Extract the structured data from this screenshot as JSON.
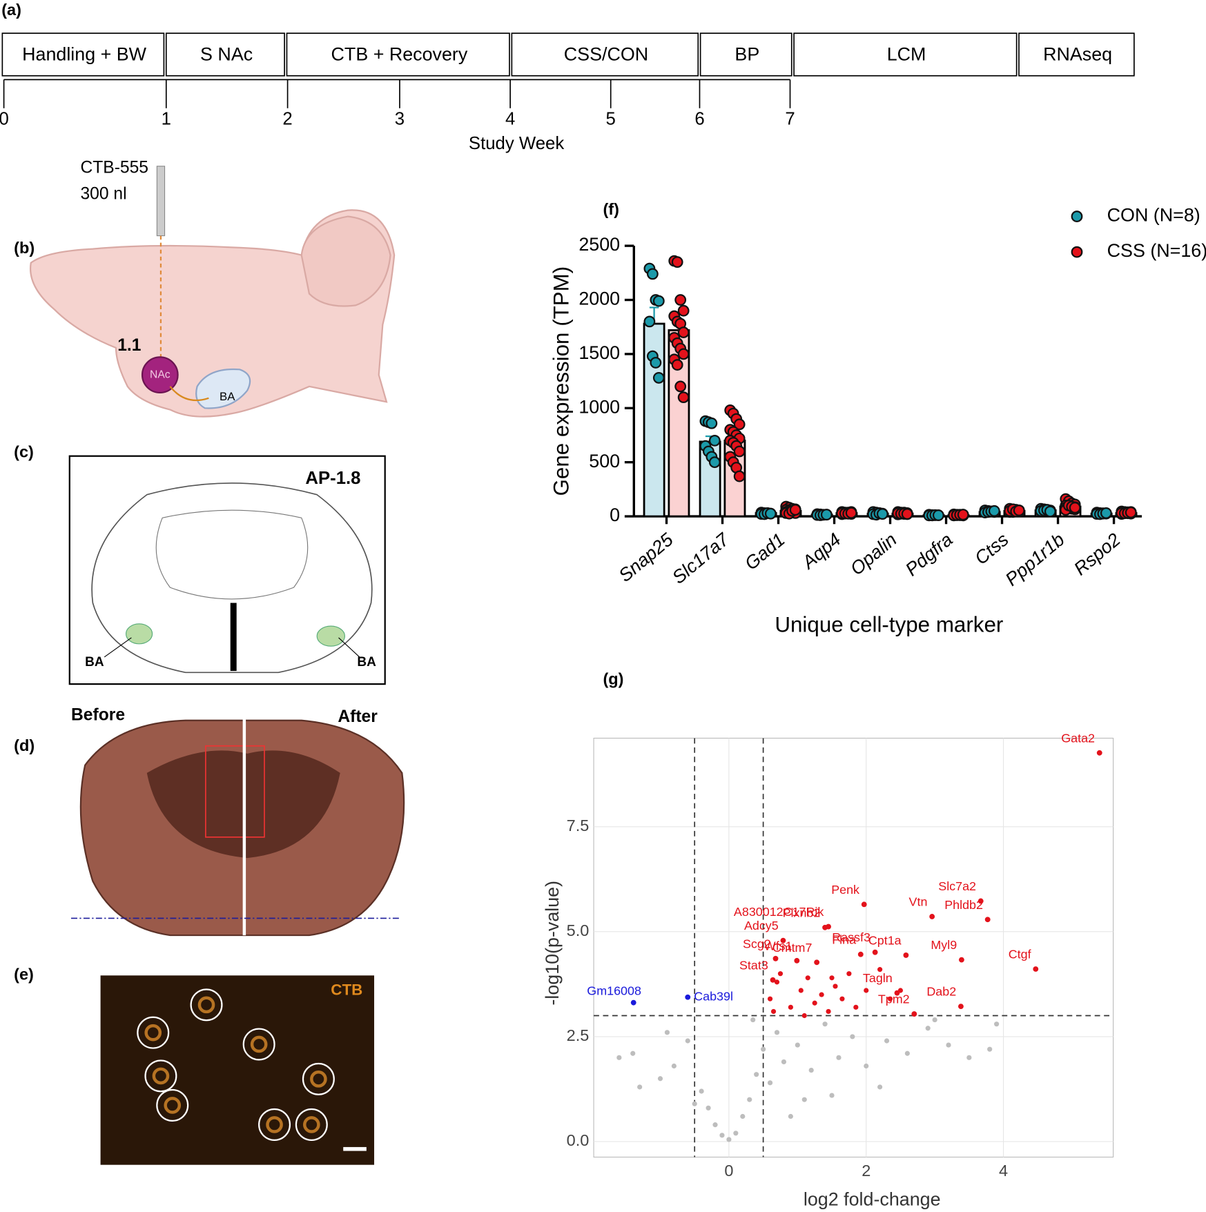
{
  "panel_labels": [
    "(a)",
    "(b)",
    "(c)",
    "(d)",
    "(e)",
    "(f)",
    "(g)"
  ],
  "timeline": {
    "stages": [
      "Handling + BW",
      "S NAc",
      "CTB + Recovery",
      "CSS/CON",
      "BP",
      "LCM",
      "RNAseq"
    ],
    "ticks": [
      "0",
      "1",
      "2",
      "3",
      "4",
      "5",
      "6",
      "7"
    ],
    "axis_label": "Study Week"
  },
  "injection": {
    "tracer": "CTB-555",
    "volume": "300 nl",
    "coordinate": "1.1",
    "source": "NAc",
    "target": "BA"
  },
  "atlas": {
    "section": "AP-1.8",
    "left_label": "BA",
    "right_label": "BA"
  },
  "slice": {
    "left_label": "Before",
    "right_label": "After"
  },
  "fluorescence": {
    "label": "CTB"
  },
  "chart_data": [
    {
      "type": "bar",
      "x_label": "Unique cell-type marker",
      "y_label": "Gene expression (TPM)",
      "categories": [
        "Snap25",
        "Slc17a7",
        "Gad1",
        "Aqp4",
        "Opalin",
        "Pdgfra",
        "Ctss",
        "Ppp1r1b",
        "Rspo2"
      ],
      "ylim": [
        0,
        2500
      ],
      "yticks": [
        0,
        500,
        1000,
        1500,
        2000,
        2500
      ],
      "legend": "top-right",
      "series": [
        {
          "name": "CON (N=8)",
          "color": "#1b9aaa",
          "bar_color": "#cbe7ee",
          "values": [
            1780,
            690,
            30,
            15,
            25,
            10,
            40,
            55,
            25
          ],
          "errors": [
            150,
            50,
            3,
            2,
            3,
            1,
            3,
            3,
            2
          ],
          "points": [
            [
              2290,
              2240,
              2000,
              1990,
              1800,
              1480,
              1420,
              1280
            ],
            [
              880,
              870,
              860,
              700,
              650,
              600,
              550,
              500
            ],
            [
              35,
              30,
              28,
              25,
              22,
              20,
              30,
              25
            ],
            [
              20,
              18,
              15,
              15,
              12,
              10,
              14,
              16
            ],
            [
              40,
              35,
              30,
              25,
              20,
              15,
              28,
              22
            ],
            [
              15,
              12,
              10,
              10,
              8,
              8,
              12,
              10
            ],
            [
              55,
              50,
              45,
              40,
              35,
              40,
              45,
              50
            ],
            [
              70,
              65,
              60,
              55,
              50,
              55,
              60,
              45
            ],
            [
              35,
              30,
              28,
              25,
              22,
              20,
              25,
              30
            ]
          ]
        },
        {
          "name": "CSS (N=16)",
          "color": "#e3121b",
          "bar_color": "#fbd2d2",
          "values": [
            1720,
            700,
            50,
            30,
            25,
            10,
            50,
            90,
            30
          ],
          "errors": [
            80,
            40,
            5,
            2,
            2,
            1,
            3,
            7,
            2
          ],
          "points": [
            [
              2360,
              2350,
              2000,
              1900,
              1850,
              1800,
              1780,
              1700,
              1650,
              1600,
              1550,
              1500,
              1450,
              1400,
              1200,
              1100
            ],
            [
              980,
              950,
              900,
              850,
              800,
              780,
              750,
              720,
              700,
              680,
              650,
              600,
              550,
              500,
              450,
              370
            ],
            [
              90,
              80,
              70,
              65,
              60,
              55,
              50,
              45,
              40,
              40,
              35,
              30,
              30,
              25,
              50,
              60
            ],
            [
              40,
              35,
              30,
              30,
              28,
              25,
              25,
              22,
              20,
              30,
              35,
              40,
              28,
              26,
              24,
              32
            ],
            [
              40,
              35,
              32,
              30,
              28,
              25,
              22,
              20,
              18,
              30,
              35,
              25,
              28,
              24,
              26,
              22
            ],
            [
              18,
              15,
              14,
              12,
              12,
              10,
              10,
              8,
              8,
              14,
              12,
              10,
              10,
              12,
              15,
              16
            ],
            [
              70,
              65,
              60,
              55,
              50,
              50,
              45,
              45,
              40,
              40,
              60,
              55,
              50,
              65,
              45,
              55
            ],
            [
              160,
              140,
              120,
              110,
              100,
              95,
              90,
              85,
              80,
              75,
              70,
              65,
              60,
              100,
              90,
              80
            ],
            [
              45,
              40,
              38,
              35,
              32,
              30,
              28,
              25,
              22,
              30,
              35,
              40,
              30,
              28,
              32,
              36
            ]
          ]
        }
      ]
    },
    {
      "type": "scatter",
      "x_label": "log2 fold-change",
      "y_label": "-log10(p-value)",
      "xlim": [
        -1.97,
        5.6
      ],
      "ylim": [
        -0.37,
        9.61
      ],
      "xticks": [
        0,
        2,
        4
      ],
      "yticks": [
        {
          "value": 0,
          "label": "0.0"
        },
        {
          "value": 2.5,
          "label": "2.5"
        },
        {
          "value": 5,
          "label": "5.0"
        },
        {
          "value": 7.5,
          "label": "7.5"
        }
      ],
      "grid": true,
      "thresholds": {
        "x": [
          -0.5,
          0.5
        ],
        "y": 3
      },
      "series": [
        {
          "color": "#bdbdbd",
          "x": [
            -1.6,
            -1.3,
            -1.0,
            -0.8,
            -0.6,
            -0.4,
            -0.3,
            -0.2,
            -0.1,
            0,
            0.1,
            0.2,
            0.3,
            0.4,
            0.5,
            0.6,
            0.7,
            0.8,
            1.0,
            1.2,
            1.4,
            1.6,
            1.8,
            2.0,
            2.3,
            2.6,
            2.9,
            3.2,
            3.5,
            3.8,
            3.9,
            3.0,
            1.1,
            0.9,
            -0.5,
            -1.4,
            -0.9,
            2.2,
            1.5,
            0.35
          ],
          "y": [
            2.0,
            1.3,
            1.5,
            1.8,
            2.4,
            1.2,
            0.8,
            0.4,
            0.15,
            0.05,
            0.2,
            0.6,
            1.0,
            1.6,
            2.2,
            1.4,
            2.6,
            1.9,
            2.3,
            1.7,
            2.8,
            2.0,
            2.5,
            1.8,
            2.4,
            2.1,
            2.7,
            2.3,
            2.0,
            2.2,
            2.8,
            2.9,
            1.0,
            0.6,
            0.9,
            2.1,
            2.6,
            1.3,
            1.1,
            2.9
          ]
        },
        {
          "color": "#e3121b",
          "x": [
            0.7,
            0.75,
            0.6,
            0.65,
            0.9,
            1.05,
            1.15,
            1.25,
            1.35,
            1.45,
            1.55,
            1.65,
            1.75,
            1.85,
            2.0,
            2.2,
            2.35,
            2.5,
            1.5,
            1.1
          ],
          "y": [
            3.8,
            4.0,
            3.4,
            3.1,
            3.2,
            3.6,
            3.9,
            3.3,
            3.5,
            3.1,
            3.7,
            3.4,
            4.0,
            3.2,
            3.6,
            4.1,
            3.4,
            3.6,
            3.9,
            3.0
          ]
        },
        {
          "color": "#e3121b",
          "labels": [
            "Gata2",
            "Slc7a2",
            "Phldb2",
            "Vtn",
            "Penk",
            "Plxnb2",
            "A830012C17Rik",
            "Adcy5",
            "Wfs1",
            "Flna",
            "Rassf3",
            "Cpt1a",
            "Myl9",
            "Ctgf",
            "Scg2",
            "Stat3",
            "Cmtm7",
            "Tagln",
            "Tpm2",
            "Dab2"
          ],
          "x": [
            5.4,
            3.67,
            3.77,
            2.96,
            1.97,
            1.4,
            1.45,
            0.79,
            0.99,
            1.92,
            2.13,
            2.58,
            3.39,
            4.47,
            0.68,
            0.64,
            1.28,
            2.45,
            2.7,
            3.38
          ],
          "y": [
            9.26,
            5.73,
            5.29,
            5.36,
            5.65,
            5.1,
            5.12,
            4.79,
            4.31,
            4.46,
            4.51,
            4.44,
            4.33,
            4.11,
            4.36,
            3.85,
            4.27,
            3.54,
            3.04,
            3.22
          ]
        },
        {
          "color": "#1a1adb",
          "labels": [
            "Gm16008",
            "Cab39l"
          ],
          "x": [
            -1.39,
            -0.6
          ],
          "y": [
            3.31,
            3.44
          ]
        }
      ]
    }
  ]
}
